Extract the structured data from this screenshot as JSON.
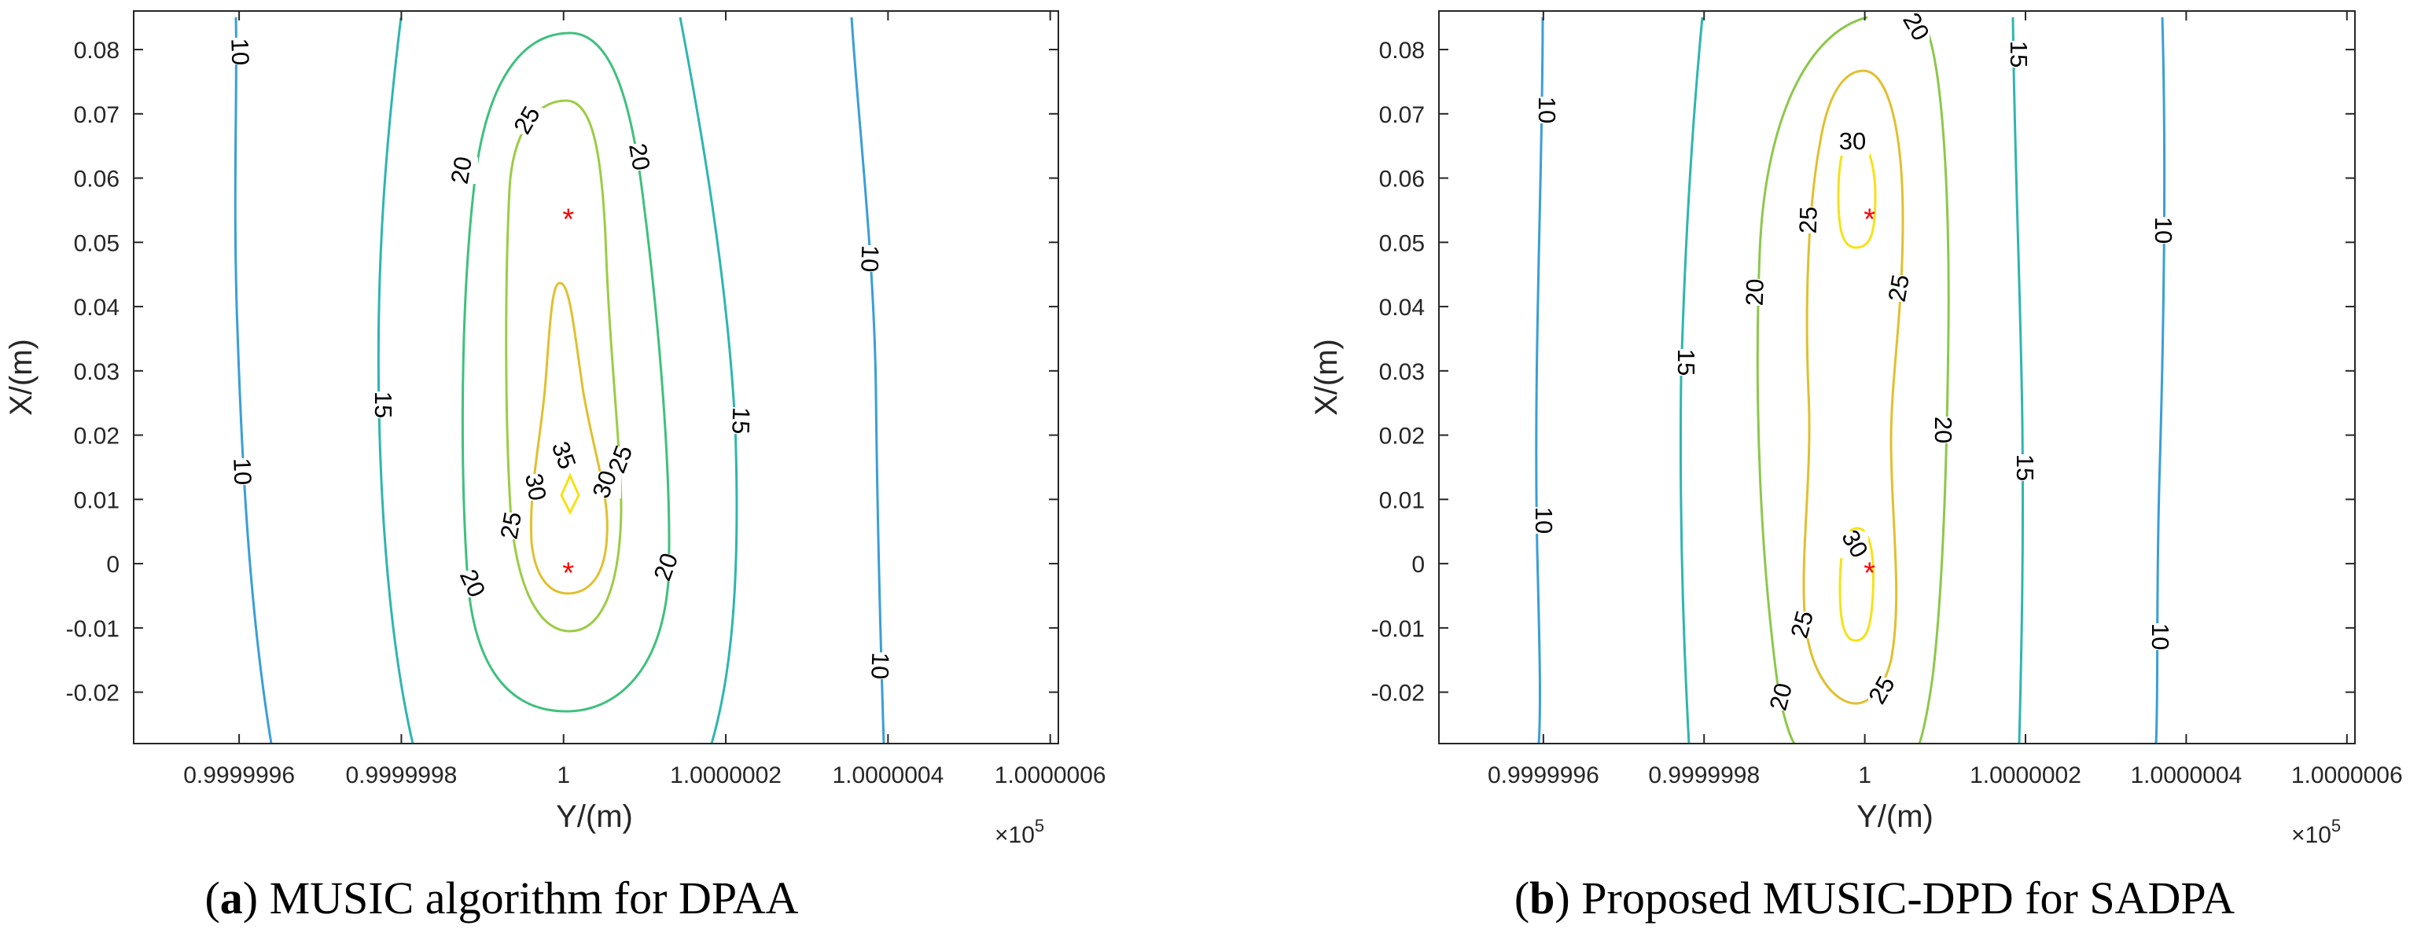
{
  "chart_data": [
    {
      "type": "contour",
      "caption_letter": "a",
      "caption_text": "MUSIC algorithm for DPAA",
      "xlabel": "Y/(m)",
      "ylabel": "X/(m)",
      "x_multiplier": "×10",
      "x_multiplier_exp": "5",
      "xlim": [
        0.99999947,
        1.00000061
      ],
      "ylim": [
        -0.028,
        0.086
      ],
      "xticks": [
        0.9999996,
        0.9999998,
        1.0,
        1.0000002,
        1.0000004,
        1.0000006
      ],
      "xtick_labels": [
        "0.9999996",
        "0.9999998",
        "1",
        "1.0000002",
        "1.0000004",
        "1.0000006"
      ],
      "yticks": [
        -0.02,
        -0.01,
        0,
        0.01,
        0.02,
        0.03,
        0.04,
        0.05,
        0.06,
        0.07,
        0.08
      ],
      "ytick_labels": [
        "-0.02",
        "-0.01",
        "0",
        "0.01",
        "0.02",
        "0.03",
        "0.04",
        "0.05",
        "0.06",
        "0.07",
        "0.08"
      ],
      "levels": [
        {
          "level": 10,
          "color": "#3a9ed8",
          "labels": [
            "10",
            "10",
            "10",
            "10"
          ]
        },
        {
          "level": 15,
          "color": "#2fb5b0",
          "labels": [
            "15",
            "15"
          ]
        },
        {
          "level": 20,
          "color": "#3fc07e",
          "labels": [
            "20",
            "20",
            "20",
            "20"
          ]
        },
        {
          "level": 25,
          "color": "#9ccc45",
          "labels": [
            "25",
            "25",
            "25"
          ]
        },
        {
          "level": 30,
          "color": "#e0c030",
          "labels": [
            "30",
            "30"
          ]
        },
        {
          "level": 35,
          "color": "#f6e216",
          "labels": [
            "35"
          ]
        }
      ],
      "sources": [
        {
          "x": 1.0,
          "y": 0.054,
          "marker": "*"
        },
        {
          "x": 1.0,
          "y": -0.001,
          "marker": "*"
        }
      ]
    },
    {
      "type": "contour",
      "caption_letter": "b",
      "caption_text": "Proposed MUSIC-DPD for SADPA",
      "xlabel": "Y/(m)",
      "ylabel": "X/(m)",
      "x_multiplier": "×10",
      "x_multiplier_exp": "5",
      "xlim": [
        0.99999947,
        1.00000061
      ],
      "ylim": [
        -0.028,
        0.086
      ],
      "xticks": [
        0.9999996,
        0.9999998,
        1.0,
        1.0000002,
        1.0000004,
        1.0000006
      ],
      "xtick_labels": [
        "0.9999996",
        "0.9999998",
        "1",
        "1.0000002",
        "1.0000004",
        "1.0000006"
      ],
      "yticks": [
        -0.02,
        -0.01,
        0,
        0.01,
        0.02,
        0.03,
        0.04,
        0.05,
        0.06,
        0.07,
        0.08
      ],
      "ytick_labels": [
        "-0.02",
        "-0.01",
        "0",
        "0.01",
        "0.02",
        "0.03",
        "0.04",
        "0.05",
        "0.06",
        "0.07",
        "0.08"
      ],
      "levels": [
        {
          "level": 10,
          "color": "#3a9ed8",
          "labels": [
            "10",
            "10",
            "10",
            "10"
          ]
        },
        {
          "level": 15,
          "color": "#2fb5b0",
          "labels": [
            "15",
            "15",
            "15"
          ]
        },
        {
          "level": 20,
          "color": "#8cc84a",
          "labels": [
            "20",
            "20",
            "20",
            "20"
          ]
        },
        {
          "level": 25,
          "color": "#e0c030",
          "labels": [
            "25",
            "25",
            "25",
            "25"
          ]
        },
        {
          "level": 30,
          "color": "#f6e216",
          "labels": [
            "30",
            "30"
          ]
        }
      ],
      "sources": [
        {
          "x": 1.0,
          "y": 0.054,
          "marker": "*"
        },
        {
          "x": 1.0,
          "y": -0.001,
          "marker": "*"
        }
      ]
    }
  ]
}
